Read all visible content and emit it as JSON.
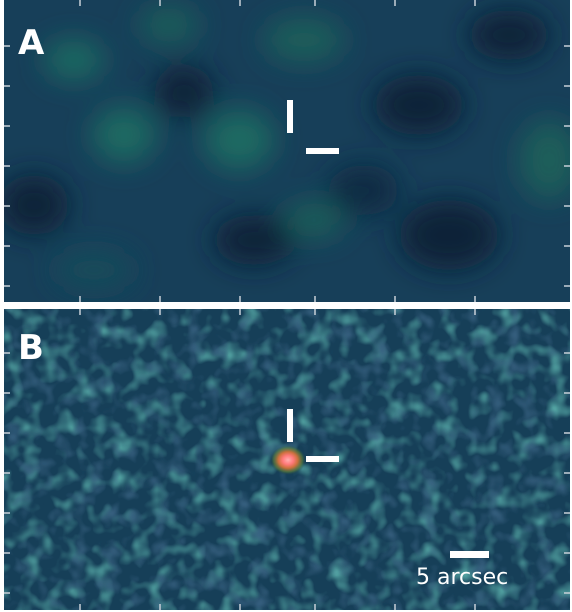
{
  "panels": [
    {
      "label": "A",
      "source_visible": false
    },
    {
      "label": "B",
      "source_visible": true
    }
  ],
  "scalebar": {
    "label": "5 arcsec"
  },
  "colors": {
    "background": "#173f59",
    "dark": "#0d2237",
    "teal": "#1f6b62",
    "source_core": "#ff8a8a",
    "source_halo": "#8a7a30",
    "marker": "#ffffff",
    "separator": "#ffffff"
  }
}
